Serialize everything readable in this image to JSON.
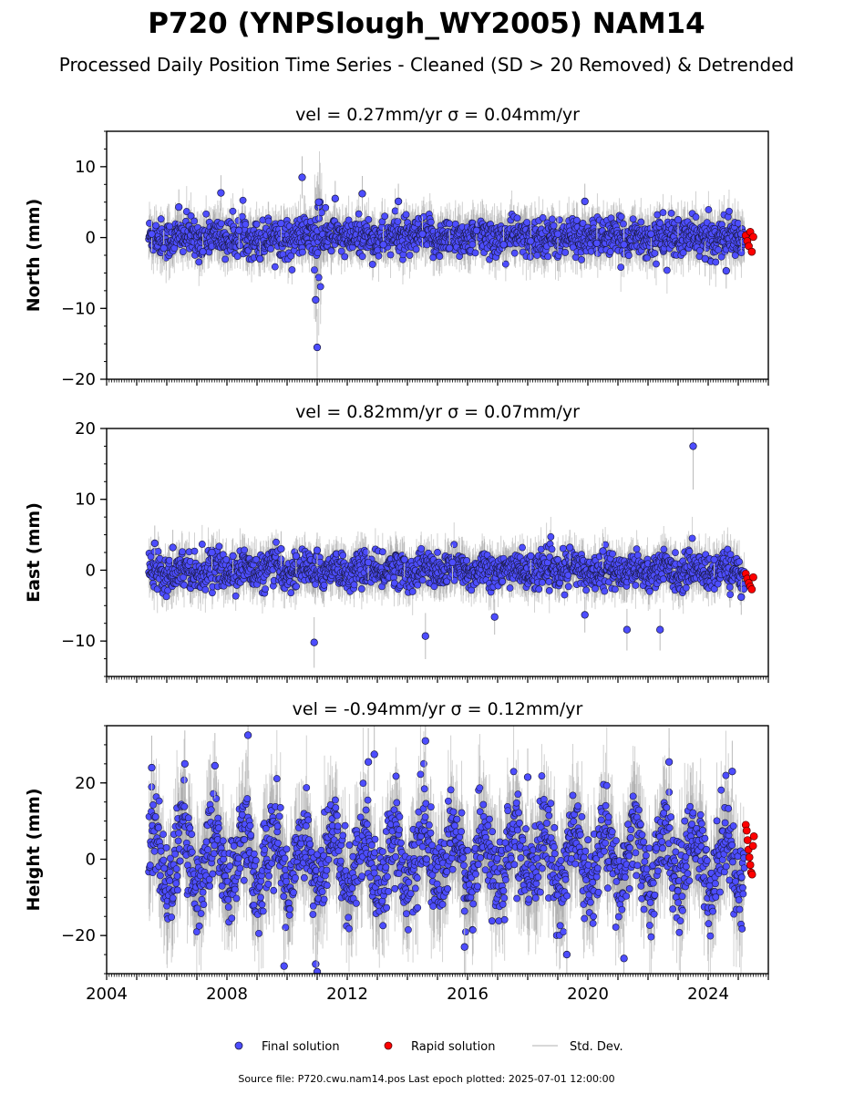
{
  "figure": {
    "title": "P720 (YNPSlough_WY2005) NAM14",
    "subtitle": "Processed Daily Position Time Series - Cleaned (SD > 20 Removed) & Detrended",
    "source_note": "Source file: P720.cwu.nam14.pos  Last epoch plotted: 2025-07-01 12:00:00"
  },
  "legend": {
    "final": "Final solution",
    "rapid": "Rapid solution",
    "std": "Std. Dev."
  },
  "colors": {
    "final_fill": "#4d4dff",
    "final_edge": "#1a1a40",
    "rapid_fill": "#ff0000",
    "rapid_edge": "#550000",
    "errorbar": "#bbbbbb"
  },
  "chart_data": [
    {
      "type": "scatter",
      "panel": "north",
      "title": "vel = 0.27mm/yr   σ = 0.04mm/yr",
      "ylabel": "North (mm)",
      "xlim": [
        2004,
        2026
      ],
      "ylim": [
        -20,
        15
      ],
      "xticks": [
        2004,
        2008,
        2012,
        2016,
        2020,
        2024
      ],
      "yticks": [
        -20,
        -10,
        0,
        10
      ],
      "series": [
        {
          "name": "Final solution",
          "x": [
            2005.5,
            2005.9,
            2006.4,
            2007.2,
            2007.8,
            2008.4,
            2009.1,
            2009.8,
            2010.5,
            2010.95,
            2011.0,
            2011.05,
            2011.6,
            2012.5,
            2013.2,
            2013.7,
            2014.5,
            2015.4,
            2016.3,
            2017.2,
            2018.1,
            2019.0,
            2019.9,
            2020.3,
            2021.2,
            2022.1,
            2023.0,
            2023.9,
            2024.6,
            2025.1
          ],
          "y": [
            0.5,
            -1.5,
            4.3,
            -2.0,
            6.3,
            1.0,
            -3.0,
            2.0,
            8.5,
            -8.8,
            -15.5,
            5.0,
            5.5,
            6.2,
            -1.0,
            5.1,
            0.5,
            -1.5,
            1.0,
            -1.0,
            -0.5,
            0.5,
            5.1,
            -0.8,
            -1.0,
            0.5,
            2.5,
            -3.0,
            -4.7,
            0.5
          ]
        },
        {
          "name": "Rapid solution",
          "x": [
            2025.25,
            2025.3,
            2025.35,
            2025.4,
            2025.45,
            2025.5
          ],
          "y": [
            0.3,
            -0.5,
            -1.2,
            0.8,
            -2.0,
            0.1
          ]
        }
      ],
      "noise": {
        "start": 2005.4,
        "end": 2025.2,
        "sd": 1.3,
        "seasonal_amp": 0.3,
        "event": [
          2010.9,
          2011.15
        ]
      }
    },
    {
      "type": "scatter",
      "panel": "east",
      "title": "vel = 0.82mm/yr   σ = 0.07mm/yr",
      "ylabel": "East (mm)",
      "xlim": [
        2004,
        2026
      ],
      "ylim": [
        -15,
        20
      ],
      "xticks": [
        2004,
        2008,
        2012,
        2016,
        2020,
        2024
      ],
      "yticks": [
        -10,
        0,
        10,
        20
      ],
      "series": [
        {
          "name": "Final solution",
          "x": [
            2005.6,
            2006.2,
            2007.5,
            2008.2,
            2009.8,
            2010.3,
            2010.9,
            2011.0,
            2012.7,
            2013.9,
            2014.6,
            2015.5,
            2016.9,
            2018.1,
            2019.4,
            2019.9,
            2020.5,
            2021.3,
            2022.4,
            2023.5,
            2024.2,
            2025.1
          ],
          "y": [
            3.8,
            3.2,
            2.5,
            2.0,
            3.0,
            2.0,
            -10.2,
            2.8,
            1.1,
            1.5,
            -9.3,
            1.1,
            -6.6,
            2.0,
            3.2,
            -6.3,
            2.7,
            -8.4,
            -8.4,
            17.5,
            1.5,
            -3.8
          ]
        },
        {
          "name": "Rapid solution",
          "x": [
            2025.25,
            2025.3,
            2025.35,
            2025.4,
            2025.45,
            2025.5
          ],
          "y": [
            -0.5,
            -1.2,
            -1.8,
            -2.3,
            -2.7,
            -1.0
          ]
        }
      ],
      "noise": {
        "start": 2005.4,
        "end": 2025.2,
        "sd": 1.2,
        "seasonal_amp": 0.6
      }
    },
    {
      "type": "scatter",
      "panel": "height",
      "title": "vel = -0.94mm/yr   σ = 0.12mm/yr",
      "ylabel": "Height (mm)",
      "xlim": [
        2004,
        2026
      ],
      "ylim": [
        -30,
        35
      ],
      "xticks": [
        2004,
        2008,
        2012,
        2016,
        2020,
        2024
      ],
      "yticks": [
        -20,
        0,
        20
      ],
      "xticklabels": [
        "2004",
        "2008",
        "2012",
        "2016",
        "2020",
        "2024"
      ],
      "series": [
        {
          "name": "Final solution",
          "x": [
            2005.5,
            2006.6,
            2007.6,
            2008.7,
            2009.9,
            2010.95,
            2011.0,
            2012.7,
            2012.9,
            2014.6,
            2015.9,
            2018.0,
            2019.3,
            2021.2,
            2022.7,
            2024.8
          ],
          "y": [
            24.0,
            25.0,
            24.5,
            32.5,
            -28.0,
            -27.5,
            -29.5,
            25.5,
            27.5,
            31.0,
            -23.0,
            21.5,
            -25.0,
            -26.0,
            25.5,
            23.0
          ]
        },
        {
          "name": "Rapid solution",
          "x": [
            2025.25,
            2025.28,
            2025.31,
            2025.34,
            2025.37,
            2025.4,
            2025.43,
            2025.46,
            2025.49,
            2025.52
          ],
          "y": [
            9.0,
            7.5,
            5.0,
            2.5,
            0.5,
            -1.5,
            -3.5,
            -4.0,
            3.5,
            6.0
          ]
        }
      ],
      "noise": {
        "start": 2005.4,
        "end": 2025.2,
        "sd": 5.5,
        "seasonal_amp": 7.5
      }
    }
  ]
}
